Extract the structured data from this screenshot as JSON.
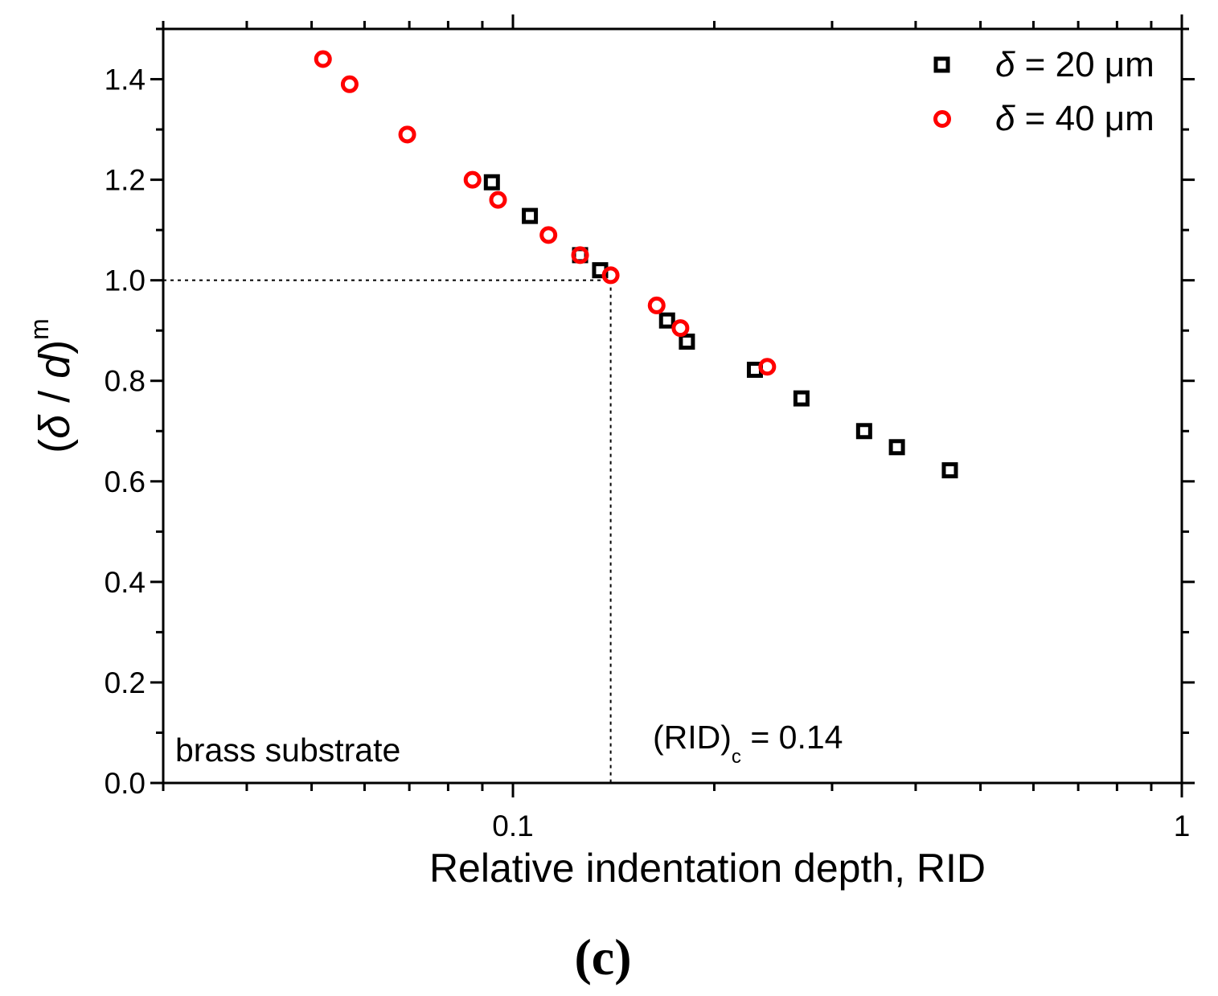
{
  "chart_data": {
    "type": "scatter",
    "xscale": "log",
    "xlim": [
      0.03,
      1
    ],
    "ylim": [
      0,
      1.5
    ],
    "xticks": [
      0.1,
      1
    ],
    "xtick_labels": [
      "0.1",
      "1"
    ],
    "yticks": [
      0.0,
      0.2,
      0.4,
      0.6,
      0.8,
      1.0,
      1.2,
      1.4
    ],
    "ytick_labels": [
      "0.0",
      "0.2",
      "0.4",
      "0.6",
      "0.8",
      "1.0",
      "1.2",
      "1.4"
    ],
    "xlabel": "Relative indentation depth, RID",
    "ylabel": {
      "open": "(",
      "delta": "δ",
      "slash": " / ",
      "d": "d",
      "close": ")",
      "sup": "m"
    },
    "legend": {
      "position": "top-right",
      "entries": [
        {
          "symbol": "δ",
          "text": " = 20 μm"
        },
        {
          "symbol": "δ",
          "text": " = 40 μm"
        }
      ]
    },
    "series": [
      {
        "name": "δ = 20 μm",
        "marker": "square",
        "color": "#000000",
        "x": [
          0.093,
          0.106,
          0.126,
          0.135,
          0.17,
          0.182,
          0.23,
          0.27,
          0.335,
          0.375,
          0.45
        ],
        "y": [
          1.195,
          1.128,
          1.05,
          1.02,
          0.92,
          0.878,
          0.822,
          0.765,
          0.7,
          0.668,
          0.622
        ]
      },
      {
        "name": "δ = 40 μm",
        "marker": "circle",
        "color": "#ff0000",
        "x": [
          0.052,
          0.057,
          0.0695,
          0.087,
          0.095,
          0.113,
          0.126,
          0.14,
          0.164,
          0.178,
          0.24
        ],
        "y": [
          1.44,
          1.39,
          1.29,
          1.2,
          1.16,
          1.09,
          1.05,
          1.01,
          0.95,
          0.905,
          0.828
        ]
      }
    ],
    "reference_lines": {
      "x": 0.14,
      "y": 1.0
    },
    "annotations": {
      "critical": {
        "main": "(RID)",
        "sub": "c",
        "rest": " = 0.14"
      },
      "substrate": "brass substrate"
    },
    "caption": "(c)"
  }
}
